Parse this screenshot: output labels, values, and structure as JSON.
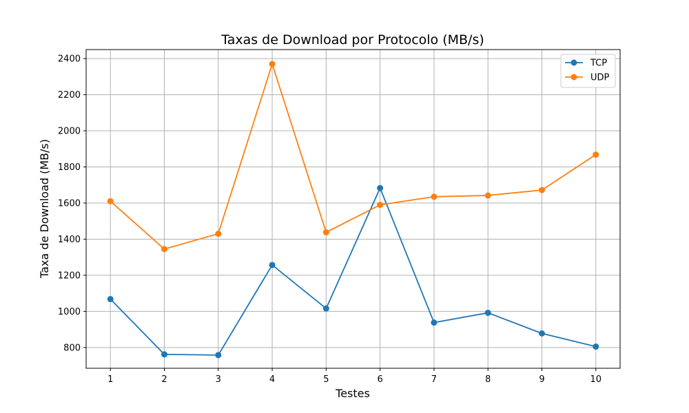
{
  "chart_data": {
    "type": "line",
    "title": "Taxas de Download por Protocolo (MB/s)",
    "xlabel": "Testes",
    "ylabel": "Taxa de Download (MB/s)",
    "x": [
      1,
      2,
      3,
      4,
      5,
      6,
      7,
      8,
      9,
      10
    ],
    "x_ticks": [
      "1",
      "2",
      "3",
      "4",
      "5",
      "6",
      "7",
      "8",
      "9",
      "10"
    ],
    "y_ticks": [
      800,
      1000,
      1200,
      1400,
      1600,
      1800,
      2000,
      2200,
      2400
    ],
    "xlim": [
      0.55,
      10.45
    ],
    "ylim": [
      685,
      2450
    ],
    "grid": true,
    "legend_position": "top-right",
    "series": [
      {
        "name": "TCP",
        "color": "#1f77b4",
        "values": [
          1068,
          762,
          758,
          1257,
          1016,
          1683,
          938,
          992,
          878,
          805
        ]
      },
      {
        "name": "UDP",
        "color": "#ff7f0e",
        "values": [
          1610,
          1345,
          1430,
          2370,
          1438,
          1590,
          1635,
          1642,
          1672,
          1868
        ]
      }
    ]
  }
}
